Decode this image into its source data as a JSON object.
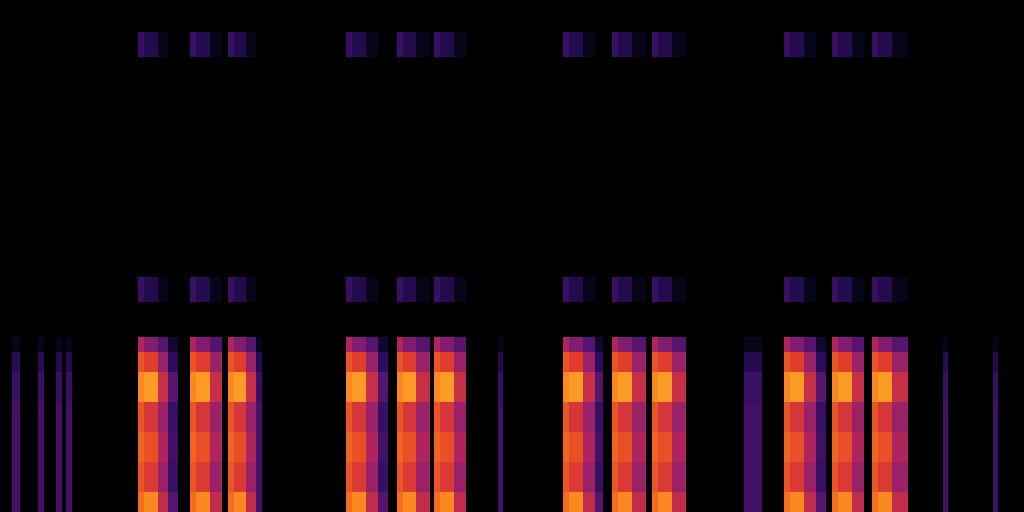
{
  "chart_data": {
    "type": "heatmap",
    "xbins": [
      0,
      12,
      20,
      38,
      44,
      56,
      62,
      66,
      72,
      138,
      144,
      158,
      168,
      178,
      190,
      196,
      210,
      222,
      228,
      234,
      246,
      256,
      262,
      346,
      352,
      366,
      378,
      388,
      397,
      403,
      416,
      430,
      434,
      440,
      454,
      466,
      498,
      503,
      563,
      569,
      583,
      595,
      603,
      612,
      618,
      632,
      646,
      652,
      658,
      672,
      686,
      744,
      762,
      784,
      790,
      804,
      816,
      826,
      832,
      838,
      852,
      864,
      872,
      878,
      892,
      908,
      943,
      948,
      993,
      998,
      1024
    ],
    "ybins": [
      0,
      20,
      50,
      80,
      110,
      140,
      160,
      175,
      210,
      235,
      455,
      480,
      512
    ],
    "z": [
      [
        0,
        30,
        0,
        30,
        0,
        30,
        0,
        30,
        0,
        80,
        85,
        60,
        35,
        0,
        80,
        85,
        60,
        0,
        80,
        85,
        60,
        30,
        0,
        80,
        85,
        60,
        35,
        0,
        80,
        85,
        60,
        0,
        80,
        85,
        60,
        0,
        30,
        0,
        80,
        85,
        60,
        35,
        0,
        80,
        85,
        60,
        0,
        80,
        85,
        60,
        0,
        30,
        0,
        80,
        85,
        60,
        35,
        0,
        80,
        85,
        60,
        0,
        80,
        85,
        60,
        0,
        30,
        0,
        30,
        0
      ],
      [
        0,
        30,
        0,
        30,
        0,
        30,
        0,
        30,
        0,
        75,
        68,
        50,
        28,
        0,
        75,
        68,
        50,
        0,
        75,
        68,
        50,
        30,
        0,
        75,
        68,
        50,
        28,
        0,
        75,
        68,
        50,
        0,
        75,
        68,
        50,
        0,
        30,
        0,
        75,
        68,
        50,
        28,
        0,
        75,
        68,
        50,
        0,
        75,
        68,
        50,
        0,
        30,
        0,
        75,
        68,
        50,
        28,
        0,
        75,
        68,
        50,
        0,
        75,
        68,
        50,
        0,
        30,
        0,
        30,
        0
      ],
      [
        0,
        30,
        0,
        30,
        0,
        30,
        0,
        30,
        0,
        78,
        74,
        55,
        30,
        0,
        78,
        74,
        55,
        0,
        78,
        74,
        55,
        30,
        0,
        78,
        74,
        55,
        30,
        0,
        78,
        74,
        55,
        0,
        78,
        74,
        55,
        0,
        30,
        0,
        78,
        74,
        55,
        30,
        0,
        78,
        74,
        55,
        0,
        78,
        74,
        55,
        0,
        30,
        0,
        78,
        74,
        55,
        30,
        0,
        78,
        74,
        55,
        0,
        78,
        74,
        55,
        0,
        30,
        0,
        30,
        0
      ],
      [
        0,
        30,
        0,
        30,
        0,
        30,
        0,
        30,
        0,
        75,
        66,
        50,
        28,
        0,
        75,
        66,
        50,
        0,
        75,
        66,
        50,
        30,
        0,
        75,
        66,
        50,
        28,
        0,
        75,
        66,
        50,
        0,
        75,
        66,
        50,
        0,
        30,
        0,
        75,
        66,
        50,
        28,
        0,
        75,
        66,
        50,
        0,
        75,
        66,
        50,
        0,
        30,
        0,
        75,
        66,
        50,
        28,
        0,
        75,
        66,
        50,
        0,
        75,
        66,
        50,
        0,
        30,
        0,
        30,
        0
      ],
      [
        0,
        28,
        0,
        28,
        0,
        28,
        0,
        28,
        0,
        85,
        88,
        62,
        35,
        0,
        85,
        88,
        62,
        0,
        85,
        88,
        62,
        28,
        0,
        85,
        88,
        62,
        35,
        0,
        85,
        88,
        62,
        0,
        85,
        88,
        62,
        0,
        28,
        0,
        85,
        88,
        62,
        35,
        0,
        85,
        88,
        62,
        0,
        85,
        88,
        62,
        0,
        28,
        0,
        85,
        88,
        62,
        35,
        0,
        85,
        88,
        62,
        0,
        85,
        88,
        62,
        0,
        28,
        0,
        28,
        0
      ],
      [
        0,
        22,
        0,
        22,
        0,
        22,
        0,
        22,
        0,
        75,
        70,
        50,
        25,
        0,
        75,
        70,
        50,
        0,
        75,
        70,
        50,
        22,
        0,
        75,
        70,
        50,
        25,
        0,
        75,
        70,
        50,
        0,
        75,
        70,
        50,
        0,
        22,
        0,
        75,
        70,
        50,
        25,
        0,
        75,
        70,
        50,
        0,
        75,
        70,
        50,
        0,
        22,
        0,
        75,
        70,
        50,
        25,
        0,
        75,
        70,
        50,
        0,
        75,
        70,
        50,
        0,
        22,
        0,
        22,
        0
      ],
      [
        0,
        10,
        0,
        10,
        0,
        10,
        0,
        10,
        0,
        55,
        45,
        35,
        15,
        0,
        55,
        45,
        35,
        0,
        55,
        45,
        35,
        10,
        0,
        55,
        45,
        35,
        15,
        0,
        55,
        45,
        35,
        0,
        55,
        45,
        35,
        0,
        10,
        0,
        55,
        45,
        35,
        15,
        0,
        55,
        45,
        35,
        0,
        55,
        45,
        35,
        0,
        10,
        0,
        55,
        45,
        35,
        15,
        0,
        55,
        45,
        35,
        0,
        55,
        45,
        35,
        0,
        10,
        0,
        10,
        0
      ],
      [
        0,
        0,
        0,
        0,
        0,
        0,
        0,
        0,
        0,
        0,
        0,
        0,
        0,
        0,
        0,
        0,
        0,
        0,
        0,
        0,
        0,
        0,
        0,
        0,
        0,
        0,
        0,
        0,
        0,
        0,
        0,
        0,
        0,
        0,
        0,
        0,
        0,
        0,
        0,
        0,
        0,
        0,
        0,
        0,
        0,
        0,
        0,
        0,
        0,
        0,
        0,
        0,
        0,
        0,
        0,
        0,
        0,
        0,
        0,
        0,
        0,
        0,
        0,
        0,
        0,
        0,
        0,
        0,
        0,
        0
      ],
      [
        0,
        0,
        0,
        0,
        0,
        0,
        0,
        0,
        0,
        28,
        22,
        10,
        0,
        0,
        28,
        22,
        10,
        0,
        28,
        22,
        10,
        0,
        0,
        28,
        22,
        10,
        0,
        0,
        28,
        22,
        10,
        0,
        28,
        22,
        10,
        0,
        0,
        0,
        28,
        22,
        10,
        0,
        0,
        28,
        22,
        10,
        0,
        28,
        22,
        10,
        0,
        0,
        0,
        28,
        22,
        10,
        0,
        0,
        28,
        22,
        10,
        0,
        28,
        22,
        10,
        0,
        0,
        0,
        0,
        0
      ],
      [
        0,
        0,
        0,
        0,
        0,
        0,
        0,
        0,
        0,
        0,
        0,
        0,
        0,
        0,
        0,
        0,
        0,
        0,
        0,
        0,
        0,
        0,
        0,
        0,
        0,
        0,
        0,
        0,
        0,
        0,
        0,
        0,
        0,
        0,
        0,
        0,
        0,
        0,
        0,
        0,
        0,
        0,
        0,
        0,
        0,
        0,
        0,
        0,
        0,
        0,
        0,
        0,
        0,
        0,
        0,
        0,
        0,
        0,
        0,
        0,
        0,
        0,
        0,
        0,
        0,
        0,
        0,
        0,
        0,
        0
      ],
      [
        0,
        0,
        0,
        0,
        0,
        0,
        0,
        0,
        0,
        28,
        22,
        10,
        0,
        0,
        28,
        22,
        10,
        0,
        28,
        22,
        10,
        0,
        0,
        28,
        22,
        10,
        0,
        0,
        28,
        22,
        10,
        0,
        28,
        22,
        10,
        0,
        0,
        0,
        28,
        22,
        10,
        0,
        0,
        28,
        22,
        10,
        0,
        28,
        22,
        10,
        0,
        0,
        0,
        28,
        22,
        10,
        0,
        0,
        28,
        22,
        10,
        0,
        28,
        22,
        10,
        0,
        0,
        0,
        0,
        0
      ],
      [
        0,
        0,
        0,
        0,
        0,
        0,
        0,
        0,
        0,
        0,
        0,
        0,
        0,
        0,
        0,
        0,
        0,
        0,
        0,
        0,
        0,
        0,
        0,
        0,
        0,
        0,
        0,
        0,
        0,
        0,
        0,
        0,
        0,
        0,
        0,
        0,
        0,
        0,
        0,
        0,
        0,
        0,
        0,
        0,
        0,
        0,
        0,
        0,
        0,
        0,
        0,
        0,
        0,
        0,
        0,
        0,
        0,
        0,
        0,
        0,
        0,
        0,
        0,
        0,
        0,
        0,
        0,
        0,
        0,
        0
      ]
    ],
    "zlim": [
      0,
      100
    ],
    "xlim": [
      0,
      1024
    ],
    "ylim": [
      0,
      512
    ],
    "tick_labels": false
  }
}
